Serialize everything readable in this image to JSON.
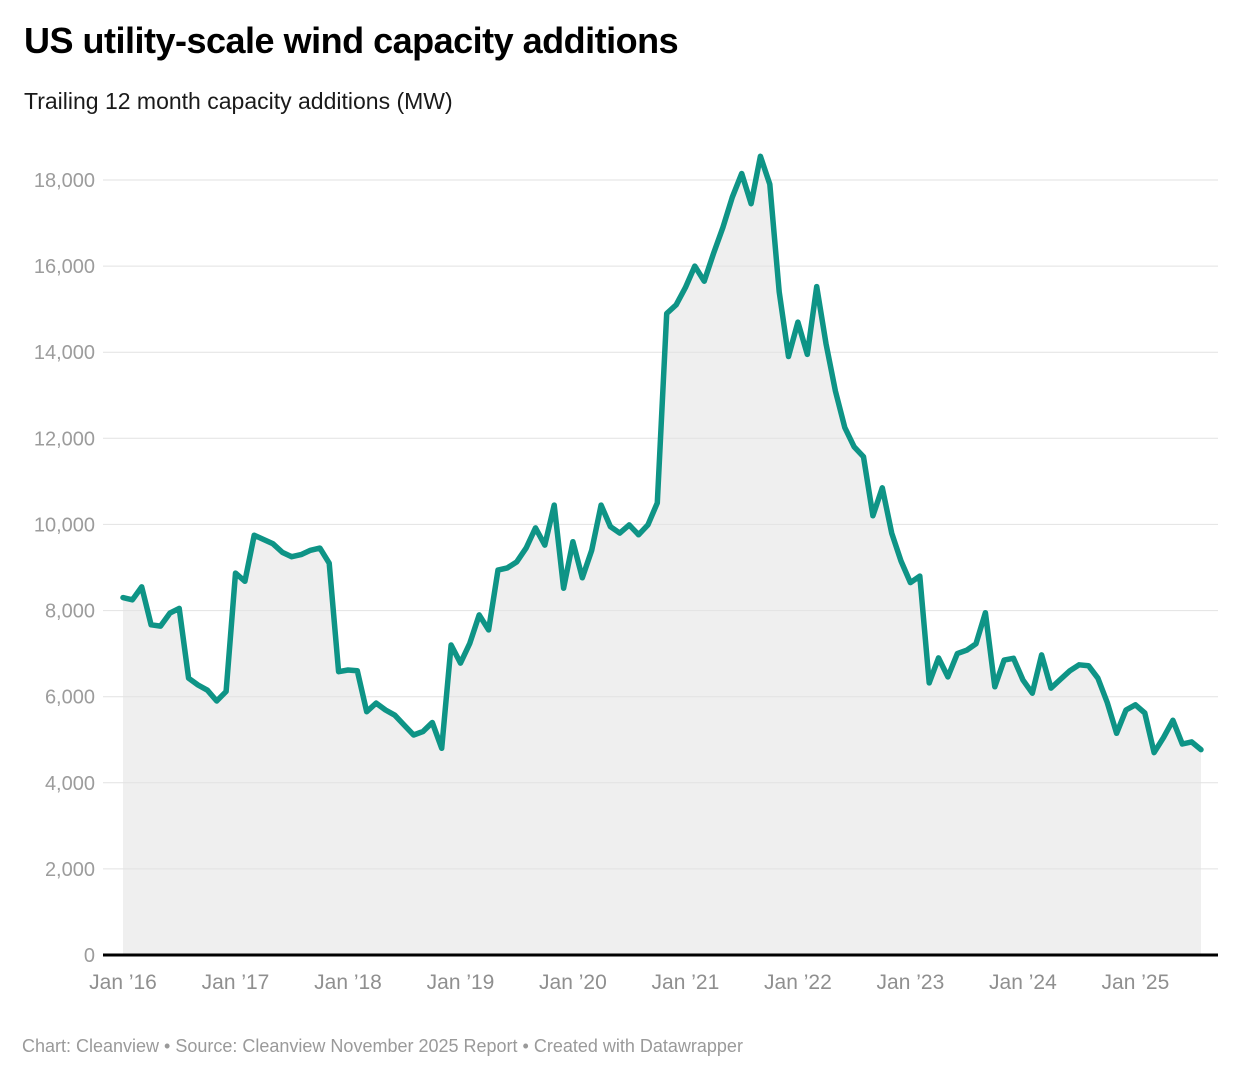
{
  "header": {
    "title": "US utility-scale wind capacity additions",
    "subtitle": "Trailing 12 month capacity additions (MW)"
  },
  "footer": {
    "text": "Chart: Cleanview • Source: Cleanview November 2025 Report • Created with Datawrapper"
  },
  "chart_data": {
    "type": "area",
    "title": "US utility-scale wind capacity additions",
    "subtitle": "Trailing 12 month capacity additions (MW)",
    "xlabel": "",
    "ylabel": "Trailing 12 month capacity additions (MW)",
    "x_start": "Jan 2016",
    "x_end": "Aug 2025",
    "frequency": "monthly",
    "ylim": [
      0,
      18000
    ],
    "grid": "horizontal",
    "legend_position": "none",
    "line_color": "#0E9486",
    "area_fill_color": "#EFEFEF",
    "baseline_color": "#000000",
    "gridline_color": "#e2e2e2",
    "series": [
      {
        "name": "Trailing 12 month capacity additions (MW)",
        "values": [
          8300,
          8250,
          8550,
          7670,
          7640,
          7940,
          8050,
          6430,
          6270,
          6150,
          5900,
          6120,
          8870,
          8680,
          9750,
          9650,
          9550,
          9350,
          9250,
          9300,
          9400,
          9450,
          9100,
          6580,
          6620,
          6600,
          5650,
          5850,
          5690,
          5570,
          5340,
          5110,
          5190,
          5400,
          4800,
          7200,
          6780,
          7240,
          7900,
          7550,
          8940,
          8990,
          9130,
          9450,
          9920,
          9520,
          10450,
          8520,
          9600,
          8760,
          9400,
          10450,
          9950,
          9800,
          9990,
          9760,
          9990,
          10500,
          14900,
          15100,
          15500,
          16000,
          15650,
          16300,
          16900,
          17600,
          18150,
          17450,
          18550,
          17900,
          15400,
          13900,
          14700,
          13950,
          15525,
          14200,
          13100,
          12250,
          11800,
          11570,
          10200,
          10850,
          9800,
          9150,
          8650,
          8800,
          6320,
          6900,
          6460,
          7000,
          7080,
          7230,
          7950,
          6230,
          6850,
          6890,
          6390,
          6080,
          6970,
          6200,
          6400,
          6600,
          6740,
          6720,
          6430,
          5860,
          5150,
          5690,
          5810,
          5620,
          4700,
          5050,
          5450,
          4900,
          4950,
          4770
        ]
      }
    ],
    "y_axis": {
      "ticks": [
        {
          "label": "0",
          "value": 0
        },
        {
          "label": "2,000",
          "value": 2000
        },
        {
          "label": "4,000",
          "value": 4000
        },
        {
          "label": "6,000",
          "value": 6000
        },
        {
          "label": "8,000",
          "value": 8000
        },
        {
          "label": "10,000",
          "value": 10000
        },
        {
          "label": "12,000",
          "value": 12000
        },
        {
          "label": "14,000",
          "value": 14000
        },
        {
          "label": "16,000",
          "value": 16000
        },
        {
          "label": "18,000",
          "value": 18000
        }
      ]
    },
    "x_axis": {
      "ticks": [
        {
          "label": "Jan ’16",
          "month_index": 0
        },
        {
          "label": "Jan ’17",
          "month_index": 12
        },
        {
          "label": "Jan ’18",
          "month_index": 24
        },
        {
          "label": "Jan ’19",
          "month_index": 36
        },
        {
          "label": "Jan ’20",
          "month_index": 48
        },
        {
          "label": "Jan ’21",
          "month_index": 60
        },
        {
          "label": "Jan ’22",
          "month_index": 72
        },
        {
          "label": "Jan ’23",
          "month_index": 84
        },
        {
          "label": "Jan ’24",
          "month_index": 96
        },
        {
          "label": "Jan ’25",
          "month_index": 108
        }
      ]
    }
  }
}
